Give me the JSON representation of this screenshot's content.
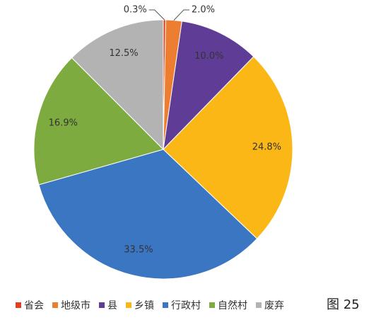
{
  "chart_data": {
    "type": "pie",
    "categories": [
      "省会",
      "地级市",
      "县",
      "乡镇",
      "行政村",
      "自然村",
      "废弃"
    ],
    "values": [
      0.3,
      2.0,
      10.0,
      24.8,
      33.5,
      16.9,
      12.5
    ],
    "value_labels": [
      "0.3%",
      "2.0%",
      "10.0%",
      "24.8%",
      "33.5%",
      "16.9%",
      "12.5%"
    ],
    "colors": [
      "#e0401c",
      "#ed7d31",
      "#5f3c96",
      "#fbb716",
      "#3a76c2",
      "#7dab3f",
      "#b3b3b3"
    ],
    "caption": "图 25"
  }
}
